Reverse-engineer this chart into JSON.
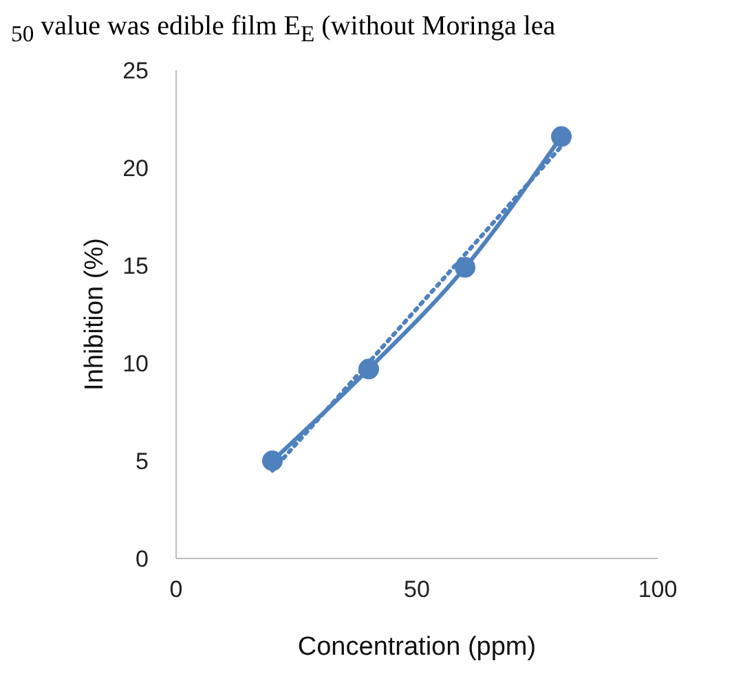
{
  "chart_data": {
    "type": "line",
    "annotations": [
      "$_{50}$ value was edible film E$_{E}$ (without Moringa lea"
    ],
    "xlabel": "Concentration (ppm)",
    "ylabel": "Inhibition (%)",
    "xlim": [
      0,
      100
    ],
    "xticks": [
      0,
      50,
      100
    ],
    "ylim": [
      0,
      25
    ],
    "yticks": [
      0,
      5,
      10,
      15,
      20,
      25
    ],
    "series": [
      {
        "color": "#4f81bd",
        "x": [
          20,
          40,
          60,
          80
        ],
        "values": [
          5.0,
          9.7,
          14.9,
          21.6
        ],
        "marker": "circle",
        "line_style": "solid"
      },
      {
        "color": "#4f81bd",
        "x": [
          20,
          80
        ],
        "values": [
          4.5,
          21.1
        ],
        "marker": "none",
        "line_style": "dotted"
      }
    ]
  }
}
